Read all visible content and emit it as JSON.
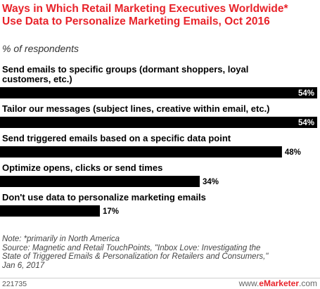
{
  "title": "Ways in Which Retail Marketing Executives Worldwide* Use Data to Personalize Marketing Emails, Oct 2016",
  "subtitle": "% of respondents",
  "chart_data": {
    "type": "bar",
    "orientation": "horizontal",
    "categories": [
      [
        "Send emails to specific groups (dormant shoppers, loyal",
        "customers, etc.)"
      ],
      [
        "Tailor our messages (subject lines, creative within email, etc.)"
      ],
      [
        "Send triggered emails based on a specific data point"
      ],
      [
        "Optimize opens, clicks or send times"
      ],
      [
        "Don't use data to personalize marketing emails"
      ]
    ],
    "values": [
      54,
      54,
      48,
      34,
      17
    ],
    "value_labels": [
      "54%",
      "54%",
      "48%",
      "34%",
      "17%"
    ],
    "xlim": [
      0,
      54
    ],
    "bar_color": "#000000",
    "grid": false,
    "legend": "none"
  },
  "notes": [
    "Note: *primarily in North America",
    "Source: Magnetic and Retail TouchPoints, \"Inbox Love: Investigating the",
    "State of Triggered Emails & Personalization for Retailers and Consumers,\"",
    "Jan 6, 2017"
  ],
  "chart_id": "221735",
  "brand": {
    "part1": "www.",
    "part2": "eMarketer",
    "part3": ".com"
  },
  "colors": {
    "title": "#e8232a",
    "bar": "#000000",
    "brand": "#e8232a"
  }
}
